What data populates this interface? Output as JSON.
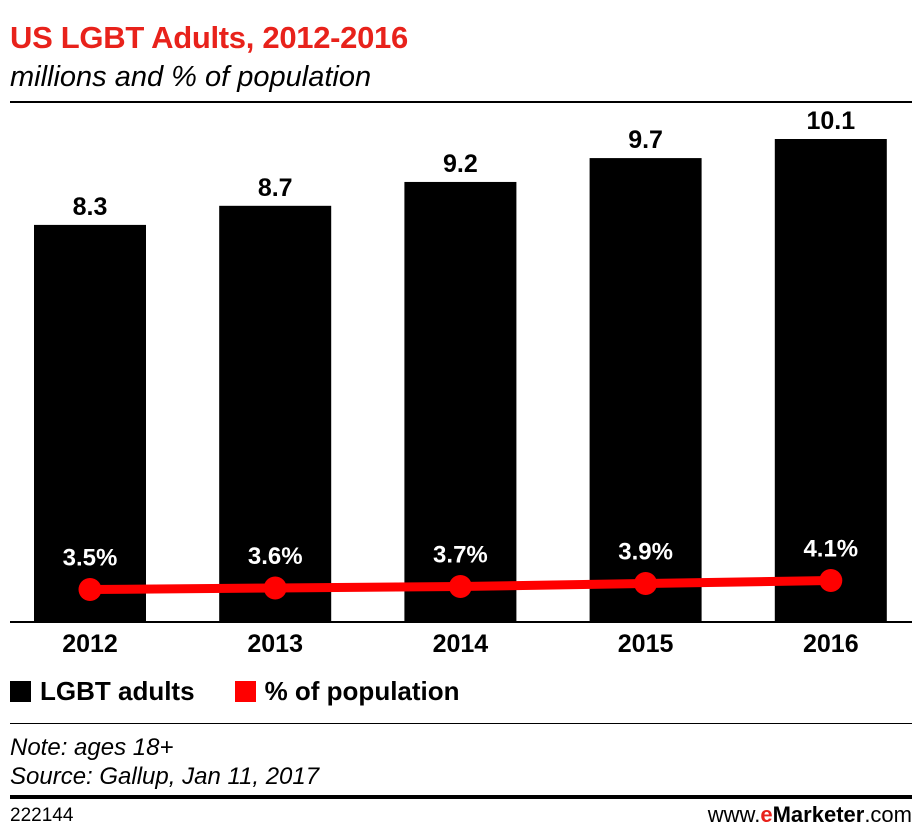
{
  "header": {
    "title": "US LGBT Adults, 2012-2016",
    "subtitle": "millions and % of population"
  },
  "chart_data": {
    "type": "bar",
    "title": "US LGBT Adults, 2012-2016",
    "subtitle": "millions and % of population",
    "categories": [
      "2012",
      "2013",
      "2014",
      "2015",
      "2016"
    ],
    "series": [
      {
        "name": "LGBT adults",
        "type": "bar",
        "color": "#000000",
        "values": [
          8.3,
          8.7,
          9.2,
          9.7,
          10.1
        ],
        "labels": [
          "8.3",
          "8.7",
          "9.2",
          "9.7",
          "10.1"
        ]
      },
      {
        "name": "% of population",
        "type": "line",
        "color": "#ff0000",
        "values": [
          3.5,
          3.6,
          3.7,
          3.9,
          4.1
        ],
        "labels": [
          "3.5%",
          "3.6%",
          "3.7%",
          "3.9%",
          "4.1%"
        ]
      }
    ],
    "xlabel": "",
    "ylabel": "",
    "ylim": [
      0,
      10.5
    ],
    "grid": false,
    "legend": "bottom-left"
  },
  "legend": {
    "items": [
      {
        "label": "LGBT adults",
        "color": "#000000"
      },
      {
        "label": "% of population",
        "color": "#ff0000"
      }
    ]
  },
  "footer": {
    "note": "Note: ages 18+",
    "source": "Source: Gallup, Jan 11, 2017",
    "chart_id": "222144",
    "brand_prefix": "www.",
    "brand_e": "e",
    "brand_name": "Marketer",
    "brand_suffix": ".com"
  },
  "colors": {
    "title": "#e8221b",
    "bars": "#000000",
    "line": "#ff0000"
  }
}
